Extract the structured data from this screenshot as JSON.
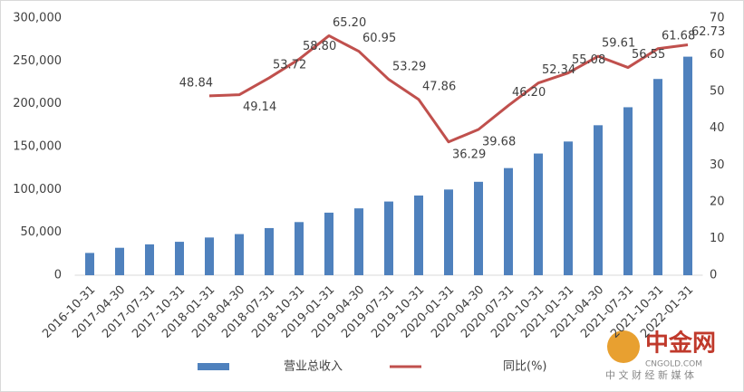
{
  "chart_data": {
    "type": "bar_line",
    "categories": [
      "2016-10-31",
      "2017-04-30",
      "2017-07-31",
      "2017-10-31",
      "2018-01-31",
      "2018-04-30",
      "2018-07-31",
      "2018-10-31",
      "2019-01-31",
      "2019-04-30",
      "2019-07-31",
      "2019-10-31",
      "2020-01-31",
      "2020-04-30",
      "2020-07-31",
      "2020-10-31",
      "2021-01-31",
      "2021-04-30",
      "2021-07-31",
      "2021-10-31",
      "2022-01-31"
    ],
    "series": [
      {
        "name": "营业总收入",
        "type": "bar",
        "color": "#4f81bd",
        "axis": "y",
        "values": [
          26000,
          32000,
          36000,
          39000,
          44000,
          48000,
          55000,
          62000,
          73000,
          78000,
          86000,
          93000,
          100000,
          109000,
          125000,
          142000,
          156000,
          175000,
          196000,
          229000,
          255000
        ]
      },
      {
        "name": "同比(%)",
        "type": "line",
        "color": "#c0504d",
        "axis": "y2",
        "values": [
          null,
          null,
          null,
          null,
          48.84,
          49.14,
          53.72,
          58.8,
          65.2,
          60.95,
          53.29,
          47.86,
          36.29,
          39.68,
          46.2,
          52.34,
          55.08,
          59.61,
          56.55,
          61.68,
          62.73
        ],
        "value_labels": [
          null,
          null,
          null,
          null,
          "48.84",
          "49.14",
          "53.72",
          "58.80",
          "65.20",
          "60.95",
          "53.29",
          "47.86",
          "36.29",
          "39.68",
          "46.20",
          "52.34",
          "55.08",
          "59.61",
          "56.55",
          "61.68",
          "62.73"
        ]
      }
    ],
    "ylim": [
      0,
      300000
    ],
    "yticks": [
      0,
      {
        "value": 50000,
        "label": "50,000"
      },
      {
        "value": 100000,
        "label": "100,000"
      },
      {
        "value": 150000,
        "label": "150,000"
      },
      {
        "value": 200000,
        "label": "200,000"
      },
      {
        "value": 250000,
        "label": "250,000"
      },
      {
        "value": 300000,
        "label": "300,000"
      }
    ],
    "y2lim": [
      0,
      70
    ],
    "y2ticks": [
      0,
      10,
      20,
      30,
      40,
      50,
      60,
      70
    ],
    "legend": "bottom",
    "grid": false
  },
  "watermark": {
    "brand": "中金网",
    "site": "CNGOLD.COM",
    "tagline": "中 文 财 经 新 媒 体"
  }
}
